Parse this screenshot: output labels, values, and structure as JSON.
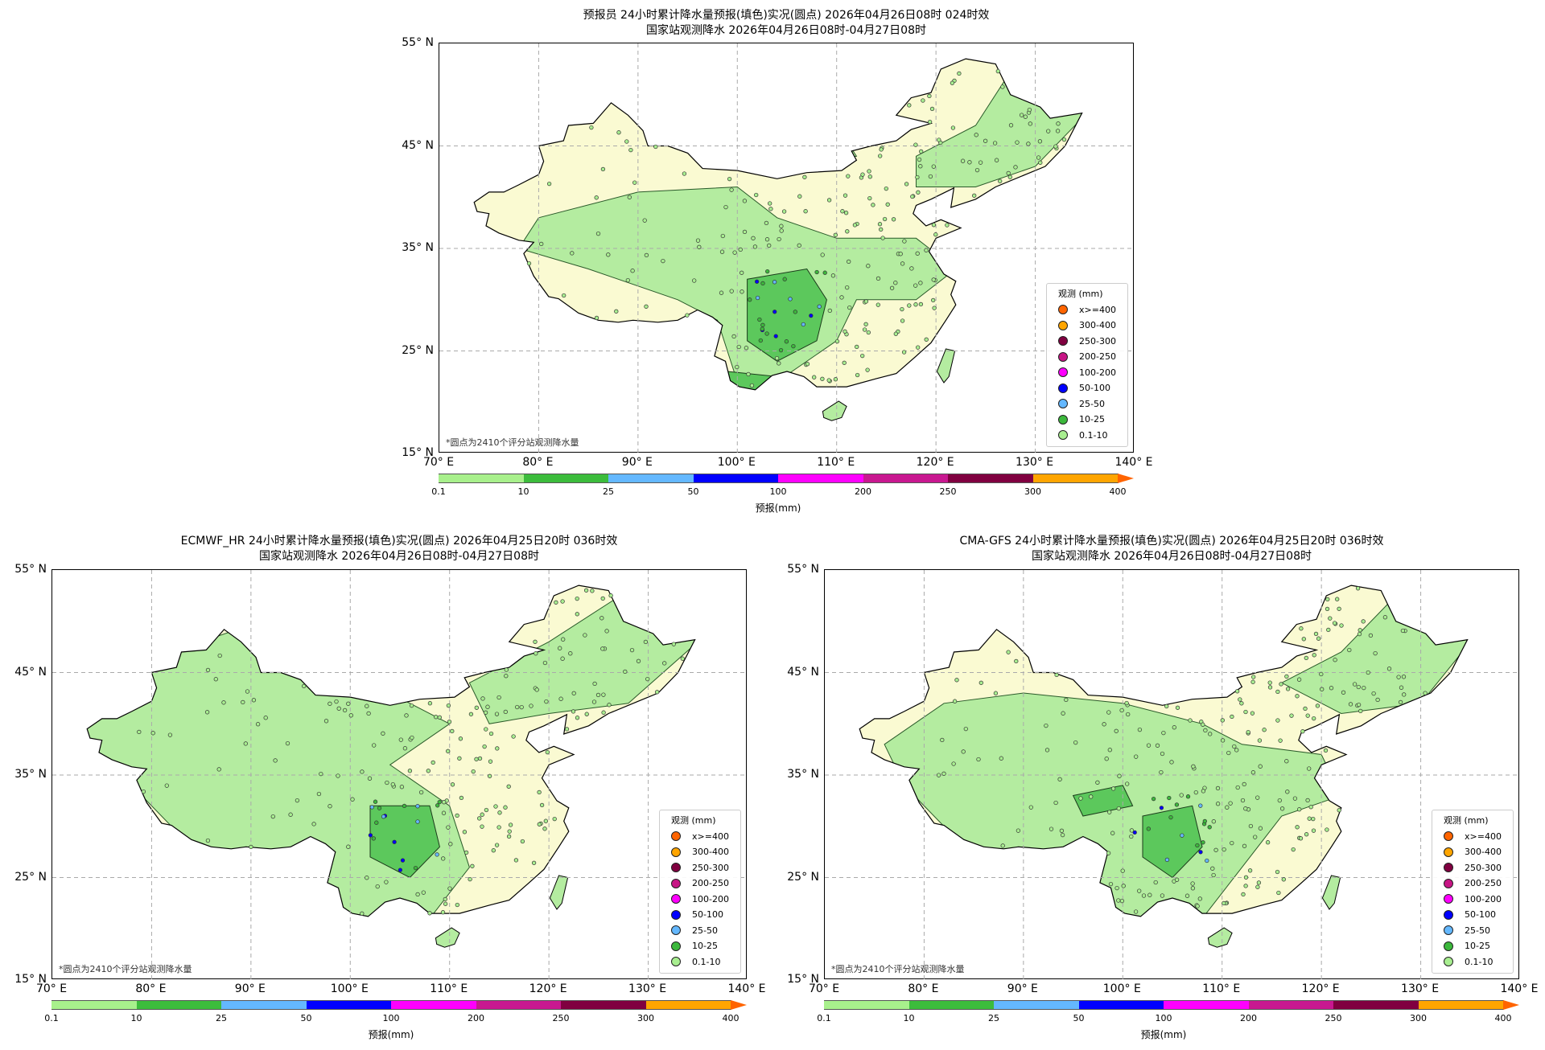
{
  "legend": {
    "title": "观测 (mm)",
    "items": [
      {
        "label": "x>=400",
        "color": "#ff6400"
      },
      {
        "label": "300-400",
        "color": "#ffa500"
      },
      {
        "label": "250-300",
        "color": "#800040"
      },
      {
        "label": "200-250",
        "color": "#c71585"
      },
      {
        "label": "100-200",
        "color": "#ff00ff"
      },
      {
        "label": "50-100",
        "color": "#0000ff"
      },
      {
        "label": "25-50",
        "color": "#64b8ff"
      },
      {
        "label": "10-25",
        "color": "#3cb83c"
      },
      {
        "label": "0.1-10",
        "color": "#a8ee90"
      }
    ]
  },
  "colorbar": {
    "label": "预报(mm)",
    "ticks": [
      "0.1",
      "10",
      "25",
      "50",
      "100",
      "200",
      "250",
      "300",
      "400"
    ],
    "colors": [
      "#a8f08c",
      "#3cbc3c",
      "#64b8ff",
      "#0000fe",
      "#fe00fe",
      "#c81890",
      "#800040",
      "#ffa500"
    ],
    "extend_color": "#ff6400"
  },
  "axes": {
    "lat_labels": [
      "55° N",
      "45° N",
      "35° N",
      "25° N",
      "15° N"
    ],
    "lon_labels": [
      "70° E",
      "80° E",
      "90° E",
      "100° E",
      "110° E",
      "120° E",
      "130° E",
      "140° E"
    ]
  },
  "note": "*圆点为2410个评分站观测降水量",
  "panels": [
    {
      "title1": "预报员 24小时累计降水量预报(填色)实况(圆点) 2026年04月26日08时 024时效",
      "title2": "国家站观测降水 2026年04月26日08时-04月27日08时"
    },
    {
      "title1": "ECMWF_HR 24小时累计降水量预报(填色)实况(圆点) 2026年04月25日20时 036时效",
      "title2": "国家站观测降水 2026年04月26日08时-04月27日08时"
    },
    {
      "title1": "CMA-GFS 24小时累计降水量预报(填色)实况(圆点) 2026年04月25日20时 036时效",
      "title2": "国家站观测降水 2026年04月26日08时-04月27日08时"
    }
  ],
  "colors": {
    "land": "#fafad2",
    "light_rain": "#b4eca0",
    "moderate_rain": "#5cc85c"
  }
}
